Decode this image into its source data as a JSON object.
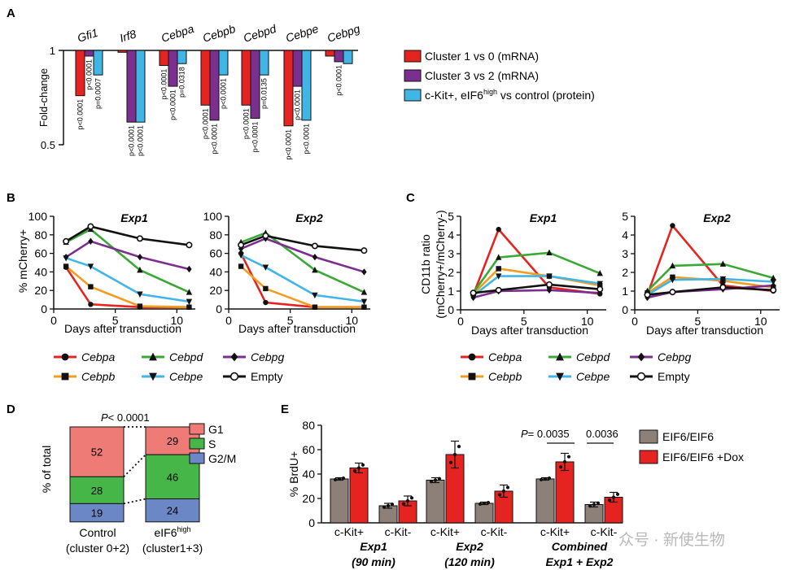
{
  "panel_labels": {
    "a": "A",
    "b": "B",
    "c": "C",
    "d": "D",
    "e": "E"
  },
  "colors": {
    "red": "#e52421",
    "purple": "#7b2f8e",
    "blue": "#41b6e6",
    "green": "#3aa935",
    "orange": "#f39c1f",
    "black": "#111111",
    "gray": "#8c8079",
    "g1": "#ee7b76",
    "s": "#46b648",
    "g2m": "#6b87c6"
  },
  "watermark": "众号 · 新使生物",
  "chart_data": [
    {
      "id": "A",
      "type": "bar",
      "ylabel": "Fold-change",
      "ytick_labels": [
        "1",
        "0.5"
      ],
      "ylim": [
        0.5,
        1
      ],
      "categories": [
        "Gfi1",
        "Irf8",
        "Cebpa",
        "Cebpb",
        "Cebpd",
        "Cebpe",
        "Cebpg"
      ],
      "series": [
        {
          "name": "Cluster 1 vs 0 (mRNA)",
          "color": "#e52421",
          "values": [
            0.76,
            0.99,
            0.92,
            0.71,
            0.71,
            0.6,
            0.97
          ],
          "pvalues": [
            "p<0.0001",
            "",
            "p<0.0001",
            "p<0.0001",
            "p<0.0001",
            "p<0.0001",
            ""
          ]
        },
        {
          "name": "Cluster 3 vs 2 (mRNA)",
          "color": "#7b2f8e",
          "values": [
            0.97,
            0.62,
            0.81,
            0.63,
            0.64,
            0.81,
            0.94
          ],
          "pvalues": [
            "p<0.0001",
            "p<0.0001",
            "p<0.0001",
            "p<0.0001",
            "p<0.0001",
            "p<0.0001",
            "p<0.0001"
          ]
        },
        {
          "name": "c-Kit+, eIF6high vs control (protein)",
          "color": "#41b6e6",
          "values": [
            0.87,
            0.62,
            0.93,
            0.87,
            0.87,
            0.63,
            0.93
          ],
          "pvalues": [
            "p=0.0007",
            "p<0.0001",
            "p=0.0318",
            "p<0.0001",
            "p=0.0135",
            "p<0.0001",
            ""
          ]
        }
      ],
      "legend": {
        "item1": "Cluster 1 vs 0 (mRNA)",
        "item2": "Cluster 3 vs 2 (mRNA)",
        "item3_pre": "c-Kit+, eIF6",
        "item3_sup": "high",
        "item3_post": " vs control (protein)"
      }
    },
    {
      "id": "B",
      "type": "line",
      "ylabel": "% mCherry+",
      "xlabel": "Days after transduction",
      "xlim": [
        0,
        11.5
      ],
      "ylim": [
        0,
        100
      ],
      "xticks": [
        0,
        5,
        10
      ],
      "yticks": [
        0,
        20,
        40,
        60,
        80,
        100
      ],
      "x": [
        1,
        3,
        7,
        11
      ],
      "panels": [
        {
          "title": "Exp1",
          "series": [
            {
              "name": "Cebpa",
              "values": [
                45,
                5,
                2,
                2
              ]
            },
            {
              "name": "Cebpb",
              "values": [
                46,
                24,
                3,
                2
              ]
            },
            {
              "name": "Cebpd",
              "values": [
                72,
                86,
                42,
                18
              ]
            },
            {
              "name": "Cebpe",
              "values": [
                55,
                46,
                16,
                8
              ]
            },
            {
              "name": "Cebpg",
              "values": [
                56,
                73,
                56,
                43
              ]
            },
            {
              "name": "Empty",
              "values": [
                73,
                89,
                76,
                69
              ]
            }
          ]
        },
        {
          "title": "Exp2",
          "series": [
            {
              "name": "Cebpa",
              "values": [
                60,
                7,
                2,
                2
              ]
            },
            {
              "name": "Cebpb",
              "values": [
                46,
                22,
                2,
                2
              ]
            },
            {
              "name": "Cebpd",
              "values": [
                72,
                82,
                42,
                18
              ]
            },
            {
              "name": "Cebpe",
              "values": [
                58,
                45,
                15,
                8
              ]
            },
            {
              "name": "Cebpg",
              "values": [
                65,
                76,
                56,
                40
              ]
            },
            {
              "name": "Empty",
              "values": [
                69,
                79,
                68,
                63
              ]
            }
          ]
        }
      ],
      "legend": [
        "Cebpa",
        "Cebpd",
        "Cebpg",
        "Cebpb",
        "Cebpe",
        "Empty"
      ]
    },
    {
      "id": "C",
      "type": "line",
      "ylabel_line1": "CD11b ratio",
      "ylabel_line2": "(mCherry+/mCherry-)",
      "xlabel": "Days after transduction",
      "xlim": [
        0,
        11.5
      ],
      "ylim": [
        0,
        5
      ],
      "xticks": [
        0,
        5,
        10
      ],
      "yticks": [
        0,
        1,
        2,
        3,
        4,
        5
      ],
      "x": [
        1,
        3,
        7,
        11
      ],
      "panels": [
        {
          "title": "Exp1",
          "series": [
            {
              "name": "Cebpa",
              "values": [
                0.8,
                4.3,
                1.2,
                0.85
              ]
            },
            {
              "name": "Cebpb",
              "values": [
                0.85,
                2.2,
                1.8,
                1.3
              ]
            },
            {
              "name": "Cebpd",
              "values": [
                0.9,
                2.8,
                3.05,
                1.95
              ]
            },
            {
              "name": "Cebpe",
              "values": [
                0.75,
                1.8,
                1.8,
                1.4
              ]
            },
            {
              "name": "Cebpg",
              "values": [
                0.65,
                1.0,
                1.05,
                0.9
              ]
            },
            {
              "name": "Empty",
              "values": [
                0.9,
                1.05,
                1.35,
                1.1
              ]
            }
          ]
        },
        {
          "title": "Exp2",
          "series": [
            {
              "name": "Cebpa",
              "values": [
                0.8,
                4.5,
                1.3,
                1.0
              ]
            },
            {
              "name": "Cebpb",
              "values": [
                0.9,
                1.75,
                1.55,
                1.2
              ]
            },
            {
              "name": "Cebpd",
              "values": [
                1.0,
                2.35,
                2.45,
                1.7
              ]
            },
            {
              "name": "Cebpe",
              "values": [
                0.8,
                1.6,
                1.65,
                1.5
              ]
            },
            {
              "name": "Cebpg",
              "values": [
                0.65,
                0.95,
                1.1,
                1.3
              ]
            },
            {
              "name": "Empty",
              "values": [
                0.8,
                0.95,
                1.2,
                1.05
              ]
            }
          ]
        }
      ],
      "legend": [
        "Cebpa",
        "Cebpd",
        "Cebpg",
        "Cebpb",
        "Cebpe",
        "Empty"
      ]
    },
    {
      "id": "D",
      "type": "bar",
      "ylabel": "% of total",
      "pvalue_pre": "P",
      "pvalue_post": "< 0.0001",
      "categories": [
        {
          "line1": "Control",
          "line2": "(cluster 0+2)"
        },
        {
          "line1_pre": "eIF6",
          "line1_sup": "high",
          "line2": "(cluster1+3)"
        }
      ],
      "series": [
        {
          "name": "G1",
          "values": [
            52,
            29
          ]
        },
        {
          "name": "S",
          "values": [
            28,
            46
          ]
        },
        {
          "name": "G2/M",
          "values": [
            19,
            24
          ]
        }
      ],
      "segment_labels": [
        [
          "52",
          "28",
          "19"
        ],
        [
          "29",
          "46",
          "24"
        ]
      ]
    },
    {
      "id": "E",
      "type": "bar",
      "ylabel": "% BrdU+",
      "ylim": [
        0,
        80
      ],
      "yticks": [
        0,
        20,
        40,
        60,
        80
      ],
      "series": [
        {
          "name": "EIF6/EIF6",
          "color": "#8c8079"
        },
        {
          "name": "EIF6/EIF6 +Dox",
          "color": "#e52421"
        }
      ],
      "groups": [
        {
          "line1": "Exp1",
          "line2": "(90 min)",
          "bars": [
            {
              "label": "c-Kit+",
              "values": [
                36,
                45
              ]
            },
            {
              "label": "c-Kit-",
              "values": [
                14,
                18
              ]
            }
          ]
        },
        {
          "line1": "Exp2",
          "line2": "(120 min)",
          "bars": [
            {
              "label": "c-Kit+",
              "values": [
                35,
                56
              ]
            },
            {
              "label": "c-Kit-",
              "values": [
                16,
                26
              ]
            }
          ]
        },
        {
          "line1": "Combined",
          "line2": "Exp1 + Exp2",
          "bars": [
            {
              "label": "c-Kit+",
              "values": [
                36,
                50
              ]
            },
            {
              "label": "c-Kit-",
              "values": [
                15,
                21
              ]
            }
          ]
        }
      ],
      "errors": [
        [
          [
            1,
            4
          ],
          [
            2,
            4
          ]
        ],
        [
          [
            2,
            11
          ],
          [
            1,
            5
          ]
        ],
        [
          [
            1,
            7
          ],
          [
            2,
            4
          ]
        ]
      ],
      "pvalue_pre": "P",
      "pvalue_1": "= 0.0035",
      "pvalue_2": "0.0036"
    }
  ]
}
